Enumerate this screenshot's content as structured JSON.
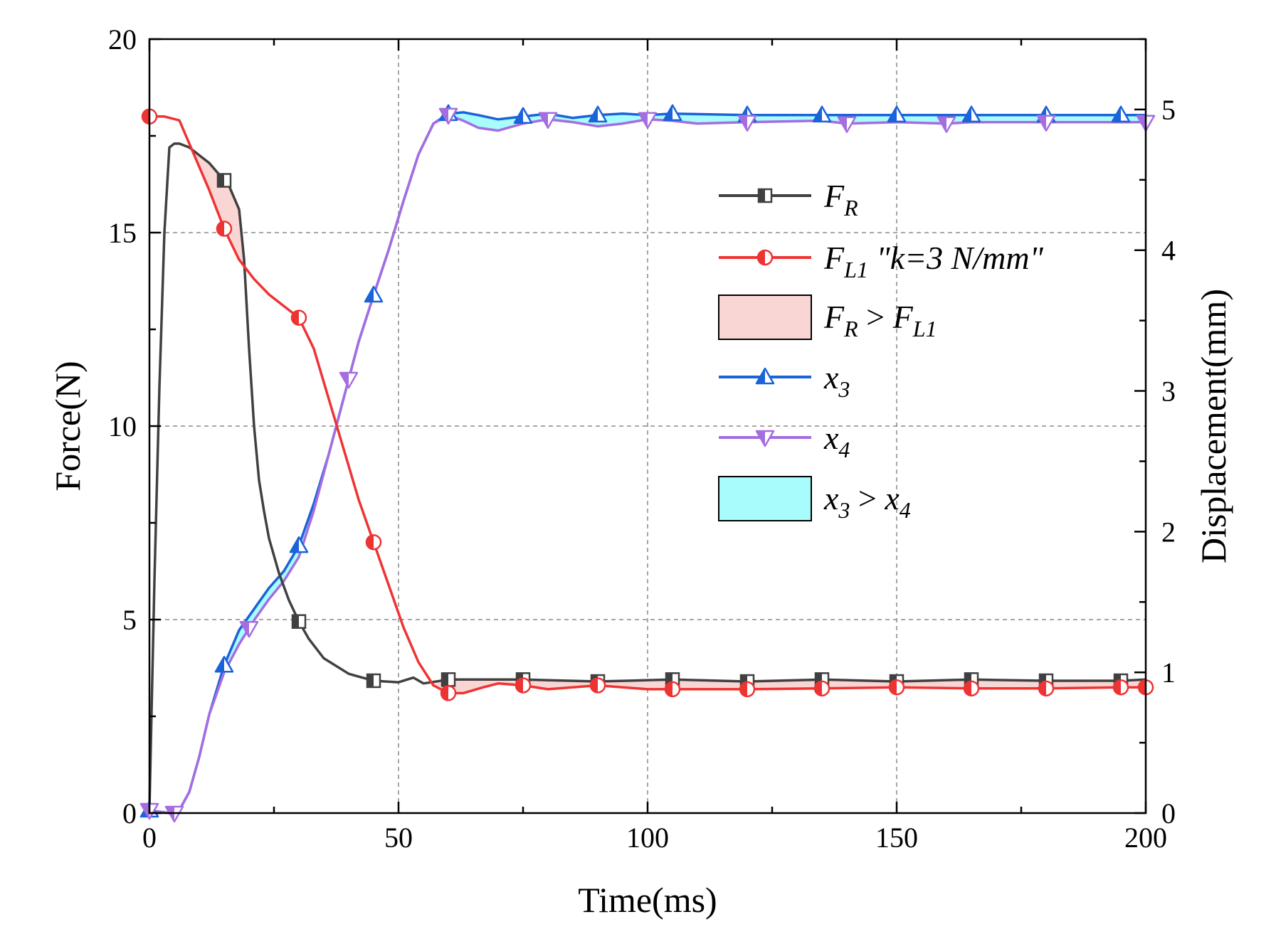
{
  "chart_data": {
    "type": "line",
    "title": "",
    "xlabel": "Time(ms)",
    "ylabel_left": "Force(N)",
    "ylabel_right": "Displacement(mm)",
    "xlim": [
      0,
      200
    ],
    "ylim_left": [
      0,
      20
    ],
    "ylim_right": [
      0,
      5.5
    ],
    "x_ticks": [
      "0",
      "50",
      "100",
      "150",
      "200"
    ],
    "y_left_ticks": [
      "0",
      "5",
      "10",
      "15",
      "20"
    ],
    "y_right_ticks": [
      "0",
      "1",
      "2",
      "3",
      "4",
      "5"
    ],
    "grid": true,
    "legend_position": "top-right",
    "colors": {
      "F_R": "#404040",
      "F_L1": "#ee3333",
      "x3": "#1a63d8",
      "x4": "#a56de0",
      "fill_force": "#f9d6d4",
      "fill_disp": "#a8fcfc"
    },
    "legend": [
      {
        "key": "F_R",
        "main": "F",
        "sub": "R",
        "suffix": "",
        "marker": "square-half"
      },
      {
        "key": "F_L1",
        "main": "F",
        "sub": "L1",
        "suffix": " \"k=3 N/mm\"",
        "marker": "circle-half"
      },
      {
        "key": "fill_force",
        "main": "F",
        "sub": "R",
        "suffix": " > ",
        "main2": "F",
        "sub2": "L1",
        "marker": "box"
      },
      {
        "key": "x3",
        "main": "x",
        "sub": "3",
        "suffix": "",
        "marker": "triangle-up"
      },
      {
        "key": "x4",
        "main": "x",
        "sub": "4",
        "suffix": "",
        "marker": "triangle-down"
      },
      {
        "key": "fill_disp",
        "main": "x",
        "sub": "3",
        "suffix": " > ",
        "main2": "x",
        "sub2": "4",
        "marker": "box"
      }
    ],
    "series": [
      {
        "name": "F_R",
        "axis": "left",
        "unit": "N",
        "x": [
          0,
          1,
          2,
          3,
          4,
          5,
          6,
          8,
          10,
          12,
          14,
          16,
          18,
          19,
          20,
          21,
          22,
          23,
          24,
          26,
          28,
          30,
          32,
          35,
          40,
          45,
          50,
          53,
          55,
          60,
          75,
          90,
          105,
          120,
          135,
          150,
          165,
          180,
          195,
          200
        ],
        "y": [
          0.1,
          6,
          11,
          15,
          17.2,
          17.3,
          17.3,
          17.2,
          17.0,
          16.8,
          16.5,
          16.2,
          15.6,
          14.3,
          12.0,
          10.0,
          8.6,
          7.8,
          7.1,
          6.2,
          5.5,
          4.95,
          4.5,
          4.0,
          3.6,
          3.42,
          3.38,
          3.5,
          3.35,
          3.45,
          3.45,
          3.4,
          3.45,
          3.4,
          3.45,
          3.4,
          3.45,
          3.42,
          3.42,
          3.45
        ],
        "markers_x": [
          15,
          30,
          45,
          60,
          75,
          90,
          105,
          120,
          135,
          150,
          165,
          180,
          195
        ]
      },
      {
        "name": "F_L1 \"k=3 N/mm\"",
        "axis": "left",
        "unit": "N",
        "x": [
          0,
          3,
          6,
          9,
          12,
          15,
          18,
          21,
          24,
          27,
          30,
          33,
          36,
          39,
          42,
          45,
          48,
          51,
          54,
          57,
          60,
          63,
          67,
          70,
          75,
          80,
          90,
          100,
          105,
          120,
          135,
          150,
          165,
          180,
          195,
          200
        ],
        "y": [
          18.0,
          18.0,
          17.9,
          17.0,
          16.1,
          15.1,
          14.3,
          13.8,
          13.4,
          13.1,
          12.8,
          12.0,
          10.7,
          9.4,
          8.1,
          7.0,
          5.9,
          4.8,
          3.9,
          3.3,
          3.1,
          3.1,
          3.25,
          3.35,
          3.3,
          3.2,
          3.3,
          3.2,
          3.2,
          3.2,
          3.22,
          3.25,
          3.22,
          3.22,
          3.25,
          3.25
        ],
        "markers_x": [
          0,
          15,
          30,
          45,
          60,
          75,
          90,
          105,
          120,
          135,
          150,
          165,
          180,
          195,
          200
        ]
      },
      {
        "name": "x3",
        "axis": "right",
        "unit": "mm",
        "x": [
          0,
          2,
          4,
          5,
          6,
          8,
          10,
          12,
          15,
          18,
          21,
          24,
          27,
          30,
          33,
          36,
          39,
          42,
          45,
          48,
          51,
          54,
          57,
          60,
          63,
          66,
          70,
          75,
          80,
          85,
          90,
          95,
          100,
          105,
          120,
          135,
          150,
          165,
          180,
          195,
          200
        ],
        "y": [
          0.02,
          0.01,
          0.0,
          0.0,
          0.02,
          0.15,
          0.4,
          0.7,
          1.05,
          1.3,
          1.45,
          1.6,
          1.72,
          1.9,
          2.2,
          2.55,
          2.95,
          3.35,
          3.68,
          4.0,
          4.35,
          4.68,
          4.9,
          4.97,
          4.98,
          4.96,
          4.93,
          4.95,
          4.97,
          4.94,
          4.96,
          4.97,
          4.96,
          4.97,
          4.96,
          4.96,
          4.96,
          4.96,
          4.96,
          4.96,
          4.96
        ],
        "markers_x": [
          0,
          15,
          30,
          45,
          60,
          75,
          90,
          105,
          120,
          135,
          150,
          165,
          180,
          195
        ]
      },
      {
        "name": "x4",
        "axis": "right",
        "unit": "mm",
        "x": [
          0,
          2,
          4,
          5,
          6,
          8,
          10,
          12,
          15,
          18,
          21,
          24,
          27,
          30,
          33,
          36,
          39,
          42,
          45,
          48,
          51,
          54,
          57,
          60,
          63,
          66,
          70,
          75,
          80,
          85,
          90,
          95,
          100,
          105,
          110,
          120,
          135,
          140,
          150,
          160,
          165,
          180,
          195,
          200
        ],
        "y": [
          0.02,
          0.01,
          0.0,
          0.0,
          0.02,
          0.15,
          0.4,
          0.7,
          1.0,
          1.2,
          1.37,
          1.52,
          1.65,
          1.82,
          2.15,
          2.55,
          2.95,
          3.35,
          3.68,
          4.0,
          4.35,
          4.68,
          4.9,
          4.96,
          4.92,
          4.87,
          4.85,
          4.9,
          4.93,
          4.91,
          4.88,
          4.9,
          4.93,
          4.92,
          4.9,
          4.91,
          4.92,
          4.9,
          4.91,
          4.9,
          4.91,
          4.91,
          4.91,
          4.91
        ],
        "markers_x": [
          0,
          5,
          20,
          40,
          60,
          80,
          100,
          120,
          140,
          160,
          180,
          200
        ]
      }
    ]
  }
}
